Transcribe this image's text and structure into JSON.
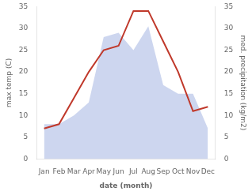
{
  "chart_data": {
    "type": "line",
    "xlabel": "date (month)",
    "ylabel": "max temp (C)",
    "y2label": "med. precipitation (kg/m2)",
    "categories": [
      "Jan",
      "Feb",
      "Mar",
      "Apr",
      "May",
      "Jun",
      "Jul",
      "Aug",
      "Sep",
      "Oct",
      "Nov",
      "Dec"
    ],
    "series": [
      {
        "type": "area",
        "color": "#b8c4e8",
        "values": [
          8,
          8,
          10,
          13,
          28,
          29,
          25,
          30.5,
          17,
          15,
          15,
          7
        ]
      },
      {
        "type": "line",
        "color": "#c0392b",
        "values": [
          7,
          8,
          14,
          20,
          25,
          26,
          34,
          34,
          27,
          20,
          11,
          12
        ]
      }
    ],
    "ylim": [
      0,
      35
    ],
    "yticks": [
      0,
      5,
      10,
      15,
      20,
      25,
      30,
      35
    ],
    "y2lim": [
      0,
      35
    ],
    "y2ticks": [
      0,
      5,
      10,
      15,
      20,
      25,
      30,
      35
    ],
    "grid": false
  }
}
